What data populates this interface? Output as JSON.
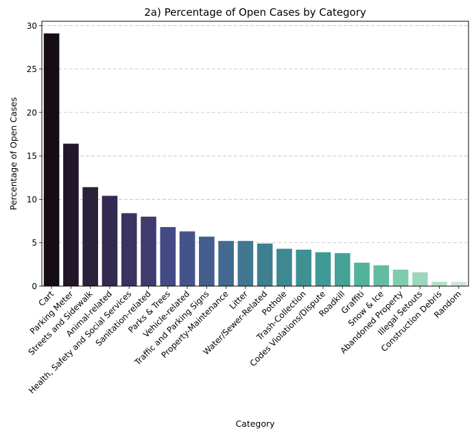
{
  "chart_data": {
    "type": "bar",
    "title": "2a) Percentage of Open Cases by Category",
    "xlabel": "Category",
    "ylabel": "Percentage of Open Cases",
    "ylim": [
      0,
      30.5
    ],
    "yticks": [
      0,
      5,
      10,
      15,
      20,
      25,
      30
    ],
    "grid": "y-dashed",
    "categories": [
      "Cart",
      "Parking Meter",
      "Streets and Sidewalk",
      "Animal-related",
      "Health, Safety and Social Services",
      "Sanitation-related",
      "Parks & Trees",
      "Vehicle-related",
      "Traffic and Parking Signs",
      "Property-Maintenance",
      "Litter",
      "Water/Sewer-Related",
      "Pothole",
      "Trash-Collection",
      "Codes Violations/Dispute",
      "Roadkill",
      "Graffiti",
      "Snow & Ice",
      "Abandoned Property",
      "Illegal Setouts",
      "Construction Debris",
      "Random"
    ],
    "values": [
      29.1,
      16.4,
      11.4,
      10.4,
      8.4,
      8.0,
      6.8,
      6.3,
      5.7,
      5.2,
      5.2,
      4.9,
      4.3,
      4.2,
      3.9,
      3.8,
      2.7,
      2.4,
      1.9,
      1.6,
      0.5,
      0.5
    ],
    "colors": [
      "#150c15",
      "#211728",
      "#2c213b",
      "#342a4f",
      "#3b335f",
      "#3f3b6e",
      "#434a85",
      "#45538d",
      "#455e8e",
      "#436a90",
      "#417791",
      "#3f7f92",
      "#3e8892",
      "#3d9193",
      "#3f9994",
      "#44a296",
      "#52b29b",
      "#63bca2",
      "#80cbae",
      "#9cd6bb",
      "#b3dfc7",
      "#cbe9d6"
    ]
  }
}
